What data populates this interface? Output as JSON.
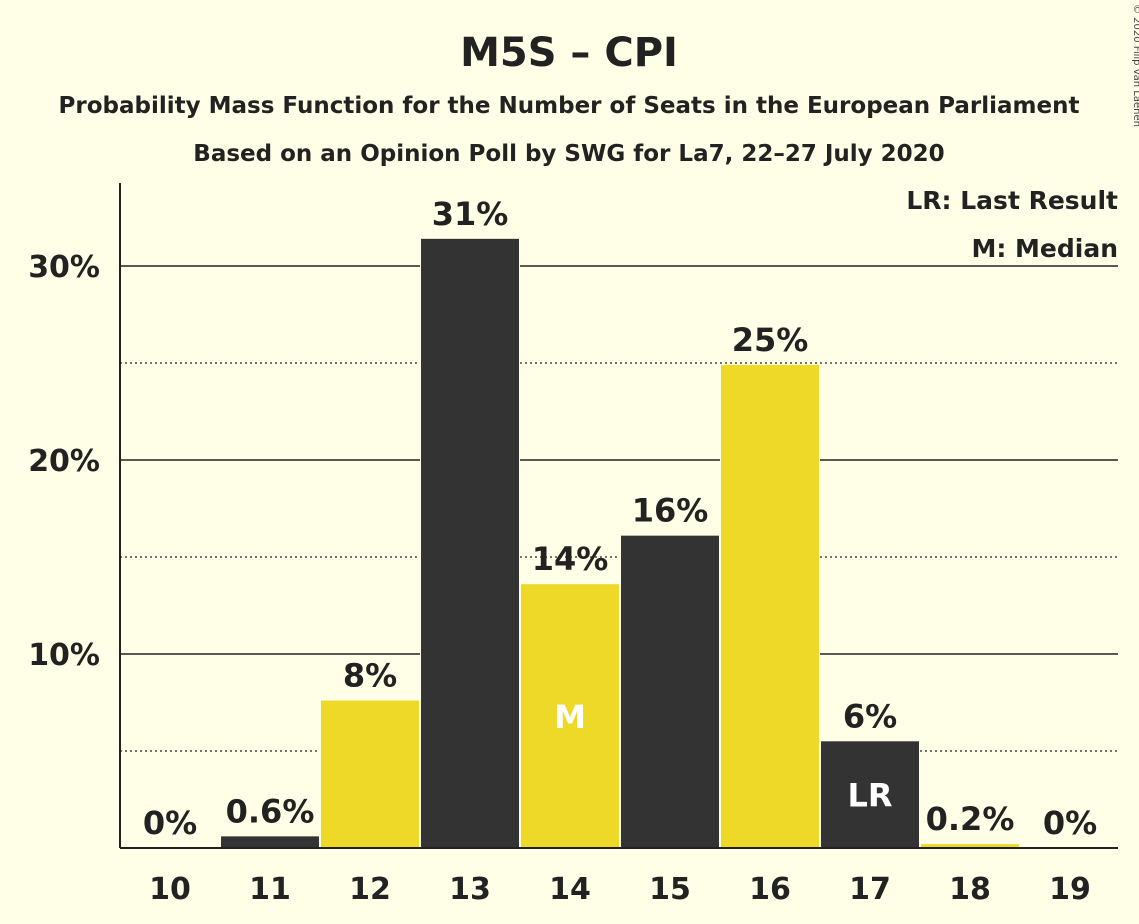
{
  "chart_data": {
    "type": "bar",
    "title": "M5S – CPI",
    "subtitle": "Probability Mass Function for the Number of Seats in the European Parliament",
    "subtitle2": "Based on an Opinion Poll by SWG for La7, 22–27 July 2020",
    "copyright": "© 2020 Filip van Laenen",
    "legend": {
      "last_result": "LR: Last Result",
      "median": "M: Median",
      "placement": "top-right"
    },
    "categories": [
      "10",
      "11",
      "12",
      "13",
      "14",
      "15",
      "16",
      "17",
      "18",
      "19"
    ],
    "values": [
      0,
      0.6,
      7.6,
      31.4,
      13.6,
      16.1,
      24.9,
      5.5,
      0.2,
      0
    ],
    "data_labels": [
      "0%",
      "0.6%",
      "8%",
      "31%",
      "14%",
      "16%",
      "25%",
      "6%",
      "0.2%",
      "0%"
    ],
    "bar_colors": [
      "#333333",
      "#333333",
      "#EED929",
      "#333333",
      "#EED929",
      "#333333",
      "#EED929",
      "#333333",
      "#EED929",
      "#333333"
    ],
    "markers": [
      {
        "category": "14",
        "label": "M"
      },
      {
        "category": "17",
        "label": "LR"
      }
    ],
    "ylim": [
      0,
      34
    ],
    "y_ticks": [
      10,
      20,
      30
    ],
    "y_tick_labels": [
      "10%",
      "20%",
      "30%"
    ],
    "y_minor_ticks": [
      5,
      15,
      25
    ],
    "grid": true,
    "xlabel": "",
    "ylabel": ""
  }
}
